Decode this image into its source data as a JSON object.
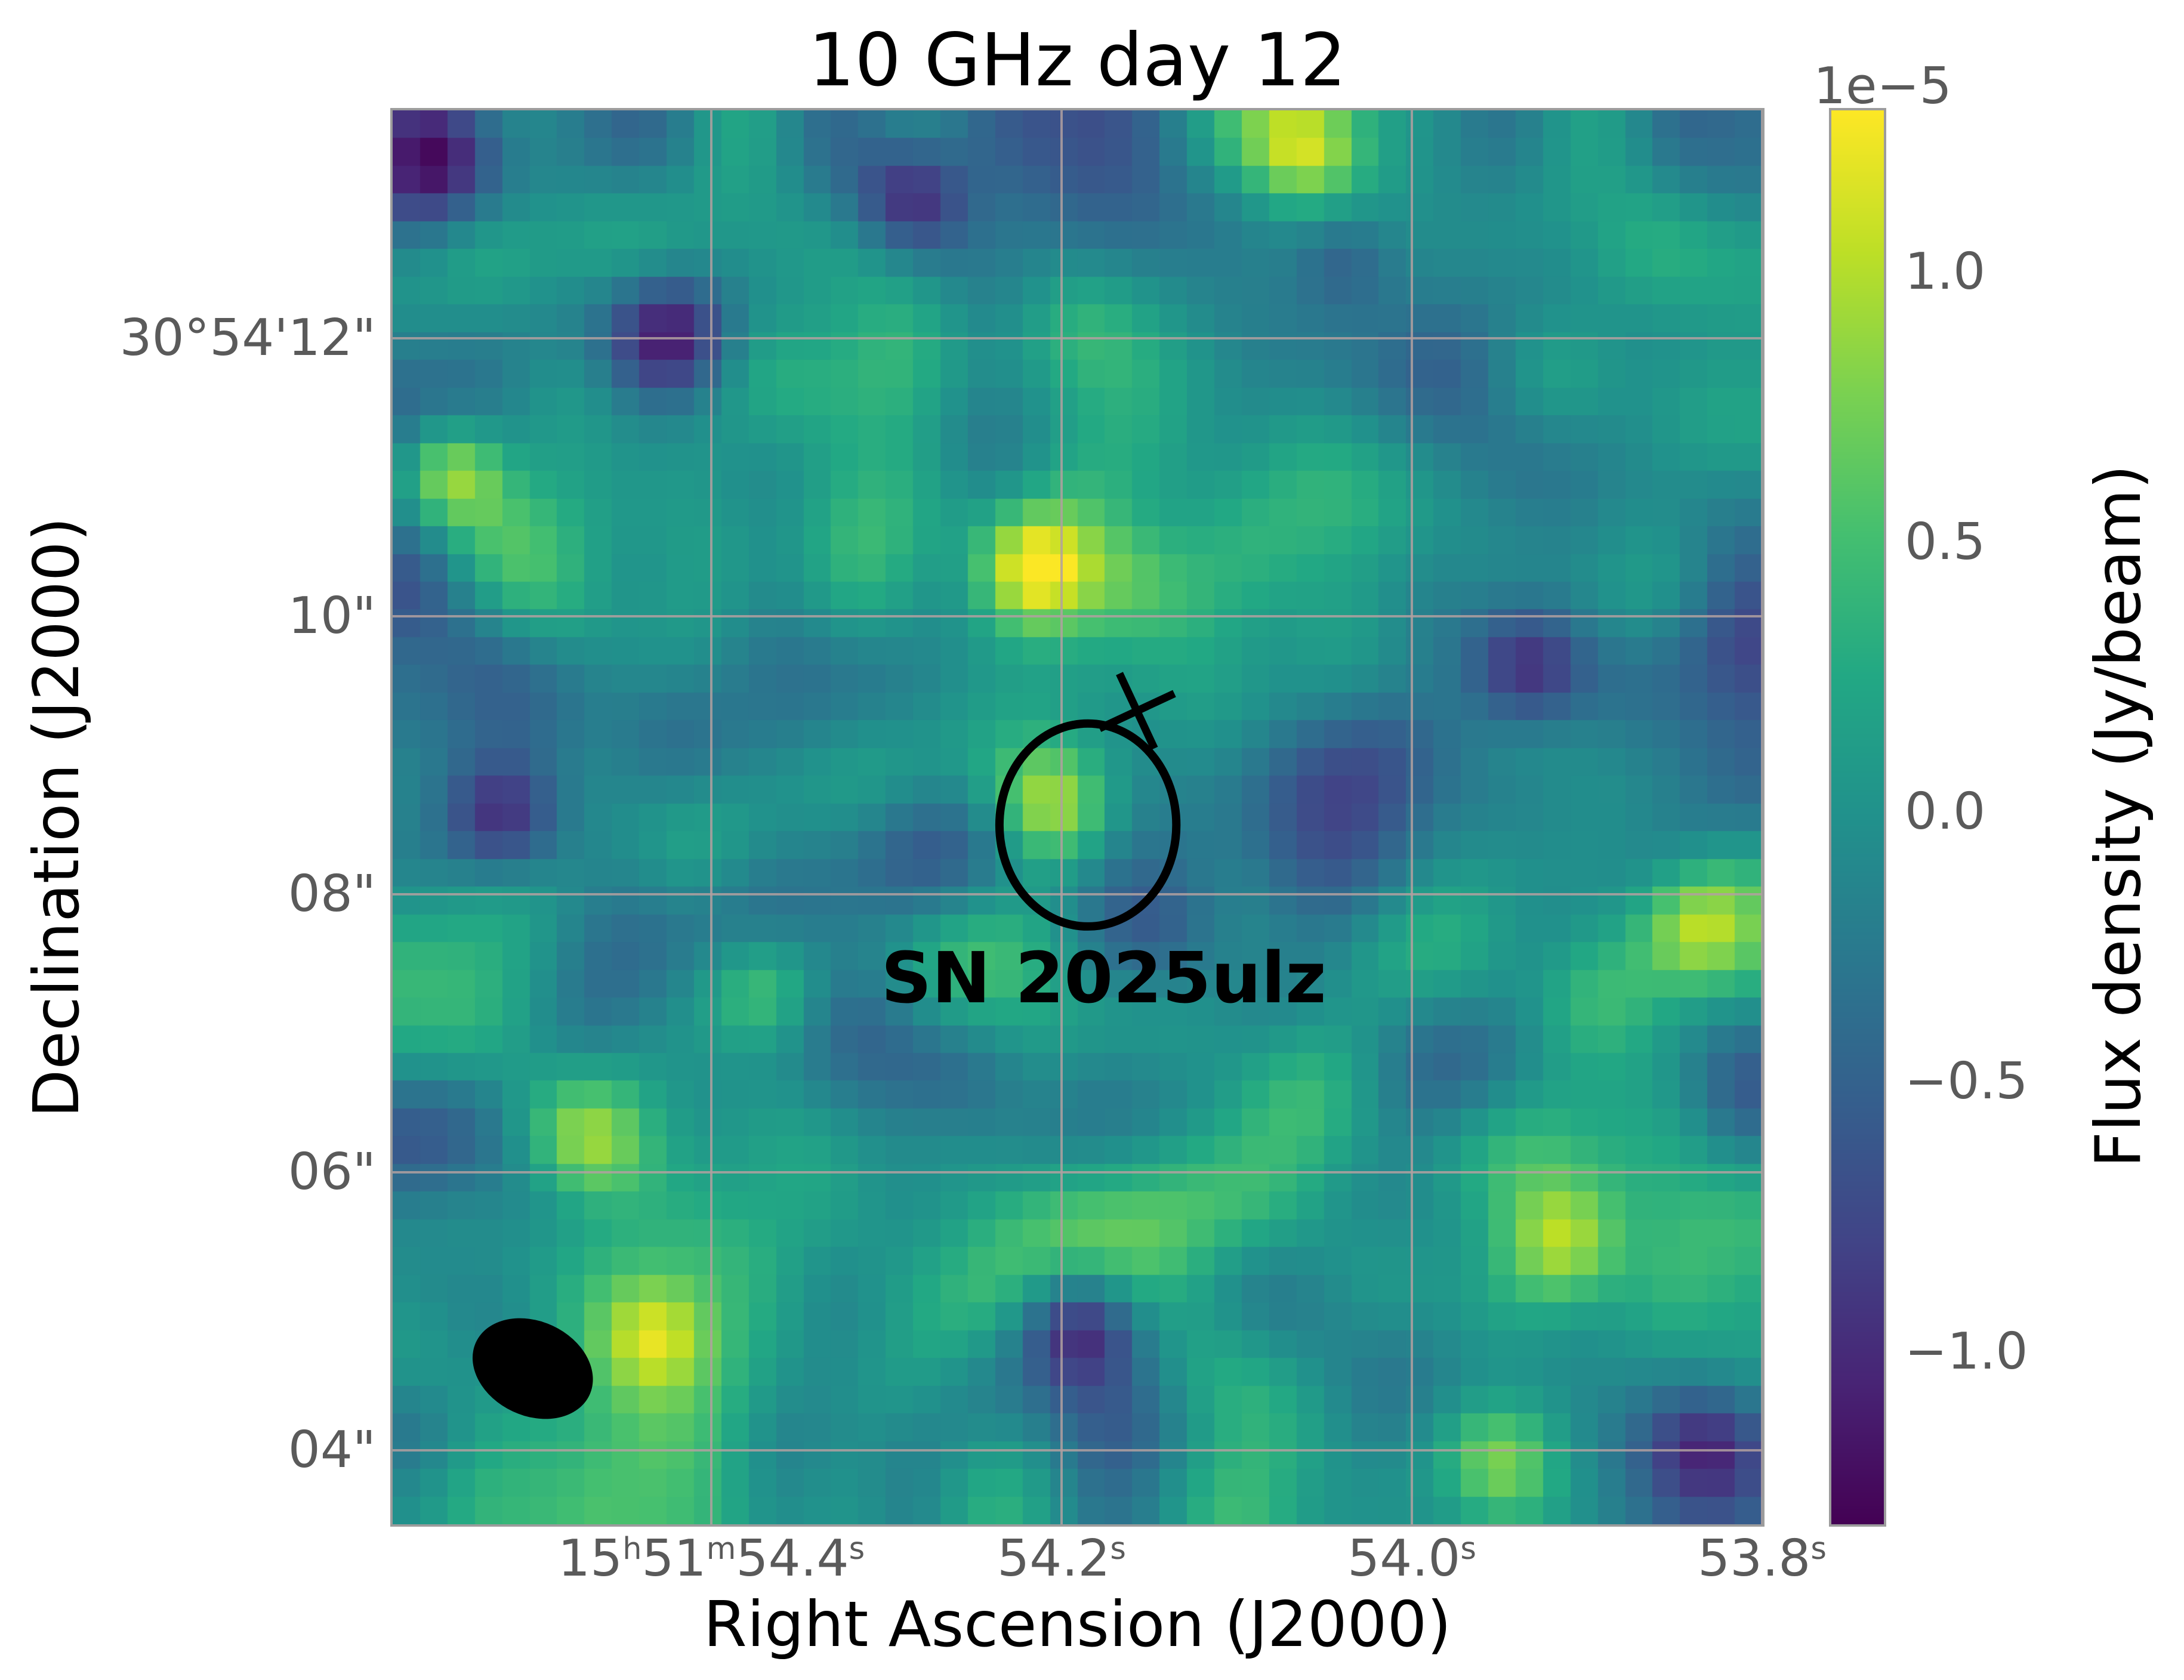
{
  "colors": {
    "background": "#ffffff",
    "axis_border": "#9c9c9c",
    "gridline": "#b2a0a0",
    "tick_label": "#5a5a5a",
    "text": "#000000",
    "marker": "#000000",
    "colormap_min": "#440154",
    "colormap_mid": "#21918c",
    "colormap_max": "#fde725"
  },
  "chart_data": {
    "type": "heatmap",
    "title": "10 GHz day 12",
    "xlabel": "Right Ascension (J2000)",
    "ylabel": "Declination (J2000)",
    "grid": true,
    "x_axis": {
      "unit": "RA seconds (within 15h51m)",
      "range_ra_s": [
        54.582,
        53.8
      ],
      "ticks": [
        {
          "value": 54.4,
          "parts": [
            {
              "t": "15",
              "sup": false
            },
            {
              "t": "h",
              "sup": true
            },
            {
              "t": "51",
              "sup": false
            },
            {
              "t": "m",
              "sup": true
            },
            {
              "t": "54.4",
              "sup": false
            },
            {
              "t": "s",
              "sup": true
            }
          ]
        },
        {
          "value": 54.2,
          "parts": [
            {
              "t": "54.2",
              "sup": false
            },
            {
              "t": "s",
              "sup": true
            }
          ]
        },
        {
          "value": 54.0,
          "parts": [
            {
              "t": "54.0",
              "sup": false
            },
            {
              "t": "s",
              "sup": true
            }
          ]
        },
        {
          "value": 53.8,
          "parts": [
            {
              "t": "53.8",
              "sup": false
            },
            {
              "t": "s",
              "sup": true
            }
          ]
        }
      ]
    },
    "y_axis": {
      "unit": "Dec arcseconds (within 30°54')",
      "range_dec_arcsec": [
        13.64,
        3.47
      ],
      "ticks": [
        {
          "value": 12,
          "label": "30°54'12\""
        },
        {
          "value": 10,
          "label": "10\""
        },
        {
          "value": 8,
          "label": "08\""
        },
        {
          "value": 6,
          "label": "06\""
        },
        {
          "value": 4,
          "label": "04\""
        }
      ]
    },
    "colorbar": {
      "label": "Flux density (Jy/beam)",
      "offset_label": "1e−5",
      "range": [
        -1.32,
        1.3
      ],
      "ticks": [
        {
          "value": 1.0,
          "label": "1.0"
        },
        {
          "value": 0.5,
          "label": "0.5"
        },
        {
          "value": 0.0,
          "label": "0.0"
        },
        {
          "value": -0.5,
          "label": "−0.5"
        },
        {
          "value": -1.0,
          "label": "−1.0"
        }
      ],
      "gradient_stops": [
        {
          "t": 0.0,
          "color": "#440154"
        },
        {
          "t": 0.1,
          "color": "#482475"
        },
        {
          "t": 0.2,
          "color": "#414487"
        },
        {
          "t": 0.3,
          "color": "#355f8d"
        },
        {
          "t": 0.4,
          "color": "#2a788e"
        },
        {
          "t": 0.5,
          "color": "#21918c"
        },
        {
          "t": 0.6,
          "color": "#22a884"
        },
        {
          "t": 0.7,
          "color": "#44bf70"
        },
        {
          "t": 0.8,
          "color": "#7ad151"
        },
        {
          "t": 0.9,
          "color": "#bddf26"
        },
        {
          "t": 1.0,
          "color": "#fde725"
        }
      ]
    },
    "annotation": {
      "label": "SN 2025ulz",
      "ra_s": 54.176,
      "dec_arcsec": 7.4
    },
    "markers": {
      "circle": {
        "ra_s": 54.185,
        "dec_arcsec": 8.5,
        "rx_arcsec": 0.65,
        "ry_arcsec": 0.73,
        "stroke_px": 14
      },
      "cross": {
        "ra_s": 54.157,
        "dec_arcsec": 9.32,
        "arm_arcsec": 0.21,
        "rotation_deg": 20,
        "stroke_px": 13
      },
      "beam": {
        "ra_s": 54.502,
        "dec_arcsec": 4.59,
        "a_arcsec": 0.46,
        "b_arcsec": 0.34,
        "rotation_deg": 25
      }
    },
    "noise_field": {
      "seed": 20250712,
      "nx": 50,
      "ny": 51,
      "smooth_passes": 4,
      "base_amp": 0.8,
      "arcsec_per_ra_s": 12.87,
      "bump_fields": [
        "ra_s",
        "dec_arcsec",
        "amplitude_1e-5_jy_beam",
        "sigma_arcsec"
      ],
      "bumps": [
        [
          54.217,
          10.35,
          1.25,
          0.3
        ],
        [
          54.16,
          10.28,
          0.85,
          0.35
        ],
        [
          54.205,
          8.62,
          1.05,
          0.3
        ],
        [
          54.549,
          11.05,
          1.15,
          0.28
        ],
        [
          54.06,
          13.35,
          0.95,
          0.3
        ],
        [
          53.913,
          5.5,
          1.0,
          0.32
        ],
        [
          54.37,
          7.3,
          0.75,
          0.3
        ],
        [
          53.84,
          7.8,
          0.85,
          0.3
        ],
        [
          54.43,
          4.8,
          0.9,
          0.3
        ],
        [
          53.95,
          3.9,
          0.75,
          0.3
        ],
        [
          54.47,
          6.2,
          0.7,
          0.3
        ],
        [
          54.425,
          12.05,
          -1.0,
          0.32
        ],
        [
          54.555,
          13.3,
          -0.85,
          0.3
        ],
        [
          54.04,
          12.55,
          -0.8,
          0.3
        ],
        [
          53.934,
          9.6,
          -0.95,
          0.32
        ],
        [
          54.52,
          8.55,
          -0.8,
          0.3
        ],
        [
          54.19,
          4.9,
          -0.9,
          0.3
        ],
        [
          54.285,
          13.0,
          -0.8,
          0.28
        ],
        [
          53.83,
          4.0,
          -0.7,
          0.3
        ]
      ]
    }
  }
}
